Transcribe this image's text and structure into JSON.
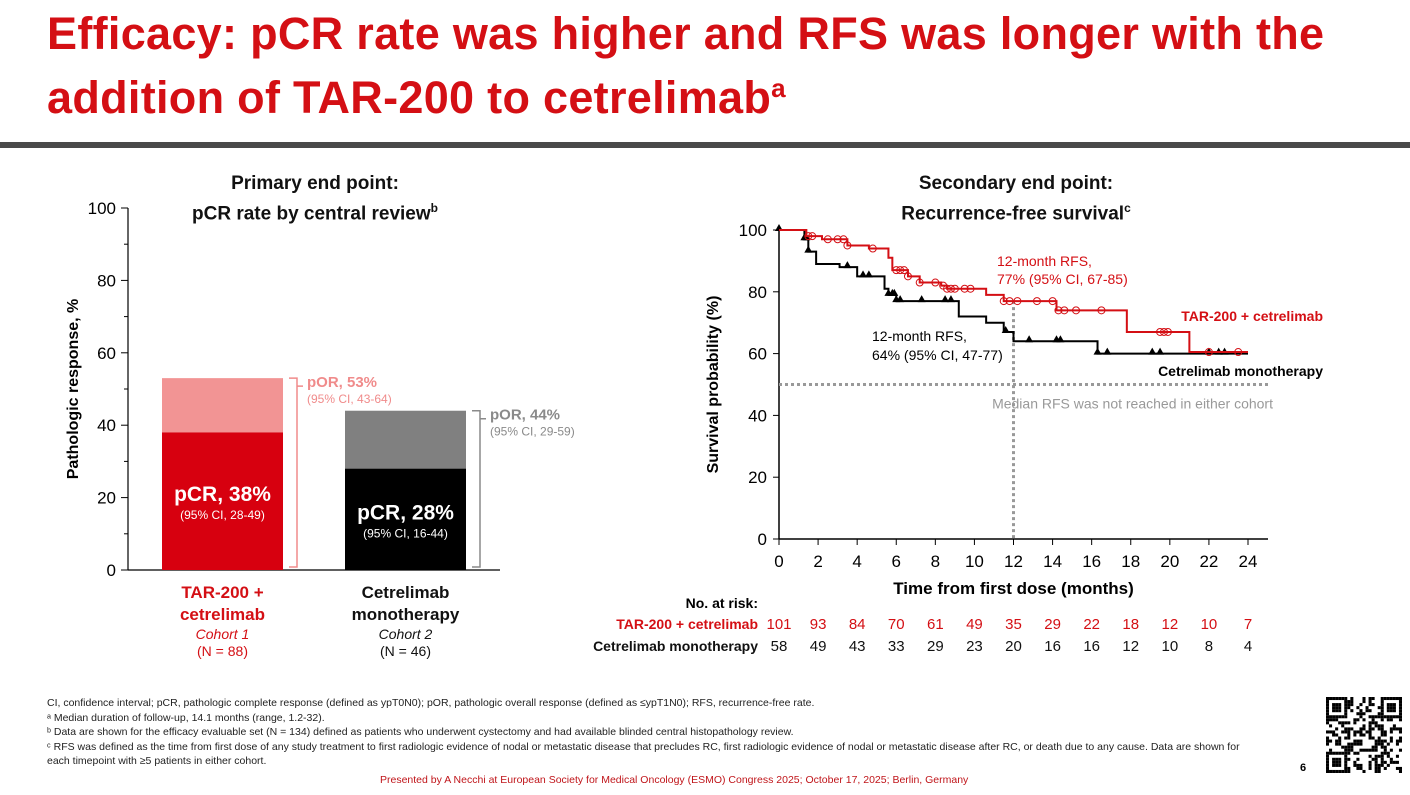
{
  "title_line1": "Efficacy: pCR rate was higher and RFS was longer with the",
  "title_line2": "addition of TAR-200 to cetrelimab",
  "title_sup": "a",
  "chart_data": [
    {
      "type": "bar",
      "title_line1": "Primary end point:",
      "title_line2": "pCR rate by central review",
      "title_sup": "b",
      "ylabel": "Pathologic response, %",
      "ylim": [
        0,
        100
      ],
      "yticks": [
        0,
        20,
        40,
        60,
        80,
        100
      ],
      "categories": [
        {
          "name_lines": [
            "TAR-200 +",
            "cetrelimab"
          ],
          "cohort": "Cohort 1",
          "n": "(N = 88)",
          "color": "#d40f14"
        },
        {
          "name_lines": [
            "Cetrelimab",
            "monotherapy"
          ],
          "cohort": "Cohort 2",
          "n": "(N = 46)",
          "color": "#111111"
        }
      ],
      "series": [
        {
          "name": "pCR",
          "values": [
            38,
            28
          ],
          "colors": [
            "#d7000f",
            "#000000"
          ],
          "labels": [
            "pCR, 38%",
            "pCR, 28%"
          ],
          "ci": [
            "(95% CI, 28-49)",
            "(95% CI, 16-44)"
          ]
        },
        {
          "name": "pOR",
          "values": [
            53,
            44
          ],
          "colors": [
            "#f29494",
            "#808080"
          ],
          "labels": [
            "pOR, 53%",
            "pOR, 44%"
          ],
          "ci": [
            "(95% CI, 43-64)",
            "(95% CI, 29-59)"
          ],
          "label_colors": [
            "#f08b8b",
            "#8a8a8a"
          ]
        }
      ]
    },
    {
      "type": "line",
      "title_line1": "Secondary end point:",
      "title_line2": "Recurrence-free survival",
      "title_sup": "c",
      "xlabel": "Time from first dose (months)",
      "ylabel": "Survival probability (%)",
      "xlim": [
        0,
        24
      ],
      "ylim": [
        0,
        100
      ],
      "xticks": [
        0,
        2,
        4,
        6,
        8,
        10,
        12,
        14,
        16,
        18,
        20,
        22,
        24
      ],
      "yticks": [
        0,
        20,
        40,
        60,
        80,
        100
      ],
      "series": [
        {
          "name": "TAR-200 + cetrelimab",
          "color": "#d40f14",
          "steps": [
            [
              0,
              100
            ],
            [
              1.4,
              98
            ],
            [
              2.2,
              97
            ],
            [
              3.5,
              95
            ],
            [
              4.6,
              94
            ],
            [
              5.6,
              91
            ],
            [
              5.8,
              87
            ],
            [
              6.6,
              85
            ],
            [
              7.2,
              83
            ],
            [
              8.3,
              82
            ],
            [
              8.6,
              81
            ],
            [
              10.6,
              79
            ],
            [
              11.5,
              77
            ],
            [
              14.2,
              74
            ],
            [
              17.8,
              67
            ],
            [
              21,
              60.5
            ],
            [
              24,
              60.5
            ]
          ],
          "censors": [
            1.5,
            1.7,
            2.5,
            3,
            3.3,
            3.5,
            4.8,
            6,
            6.2,
            6.4,
            6.6,
            7.2,
            8,
            8.4,
            8.6,
            8.8,
            9,
            9.5,
            9.8,
            11.5,
            11.8,
            12.2,
            13.2,
            14,
            14.3,
            14.6,
            15.2,
            16.5,
            19.5,
            19.7,
            19.9,
            22,
            23.5
          ],
          "annotation": [
            "12-month RFS,",
            "77% (95% CI, 67-85)"
          ]
        },
        {
          "name": "Cetrelimab monotherapy",
          "color": "#000000",
          "steps": [
            [
              0,
              100
            ],
            [
              1.3,
              97
            ],
            [
              1.5,
              93
            ],
            [
              1.9,
              89
            ],
            [
              3.1,
              88
            ],
            [
              4,
              85
            ],
            [
              5.4,
              81
            ],
            [
              5.6,
              79
            ],
            [
              6,
              77
            ],
            [
              9.2,
              72
            ],
            [
              10.6,
              70
            ],
            [
              11.5,
              67
            ],
            [
              12,
              64
            ],
            [
              16.3,
              60
            ],
            [
              24,
              60
            ]
          ],
          "censors": [
            0,
            1.3,
            1.4,
            1.5,
            3.5,
            4.3,
            4.6,
            5.6,
            5.8,
            5.9,
            6,
            6.2,
            7.3,
            8.5,
            8.8,
            11.6,
            12.8,
            14.2,
            14.4,
            16.3,
            16.8,
            19.1,
            19.5,
            22,
            22.5,
            22.8
          ],
          "annotation": [
            "12-month RFS,",
            "64% (95% CI, 47-77)"
          ]
        }
      ],
      "median_line": 50,
      "median_text": "Median RFS was not reached in either cohort",
      "ref_x": 12,
      "at_risk_title": "No. at risk:",
      "at_risk": [
        {
          "name": "TAR-200 + cetrelimab",
          "color": "#d40f14",
          "values": [
            101,
            93,
            84,
            70,
            61,
            49,
            35,
            29,
            22,
            18,
            12,
            10,
            7
          ]
        },
        {
          "name": "Cetrelimab monotherapy",
          "color": "#111111",
          "values": [
            58,
            49,
            43,
            33,
            29,
            23,
            20,
            16,
            16,
            12,
            10,
            8,
            4
          ]
        }
      ]
    }
  ],
  "footnotes": [
    "CI, confidence interval; pCR, pathologic complete response (defined as ypT0N0); pOR, pathologic overall response (defined as ≤ypT1N0); RFS, recurrence-free rate.",
    "ᵃ Median duration of follow-up, 14.1 months (range, 1.2-32).",
    "ᵇ Data are shown for the efficacy evaluable set (N = 134) defined as patients who underwent cystectomy and had available blinded central histopathology review.",
    "ᶜ RFS was defined as the time from first dose of any study treatment to first radiologic evidence of nodal or metastatic disease that precludes RC, first radiologic evidence of nodal or metastatic disease after RC, or death due to any cause. Data are shown for each timepoint with ≥5 patients in either cohort."
  ],
  "presented": "Presented by A Necchi at European Society for Medical Oncology (ESMO) Congress 2025; October 17, 2025; Berlin, Germany",
  "page_number": "6"
}
